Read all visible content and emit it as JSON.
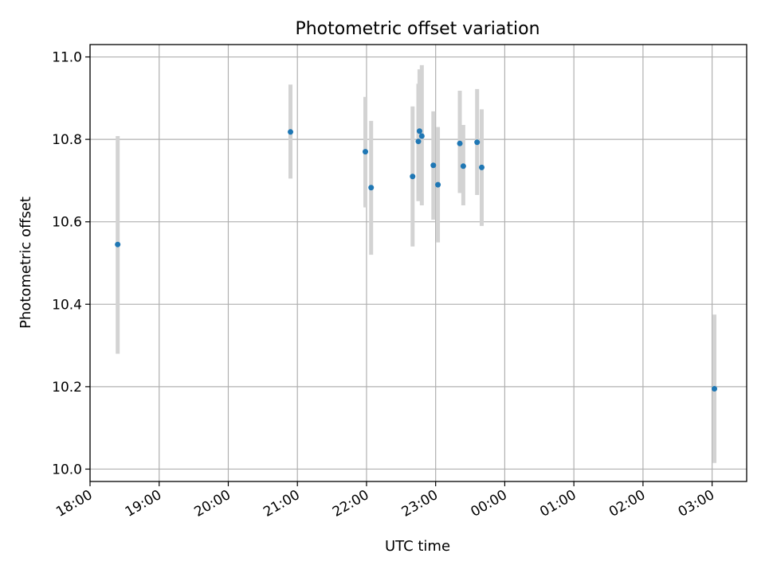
{
  "chart_data": {
    "type": "scatter",
    "title": "Photometric offset variation",
    "xlabel": "UTC time",
    "ylabel": "Photometric offset",
    "xlim": [
      "18:00",
      "03:30"
    ],
    "ylim": [
      9.97,
      11.03
    ],
    "grid": true,
    "x_ticks": [
      "18:00",
      "19:00",
      "20:00",
      "21:00",
      "22:00",
      "23:00",
      "00:00",
      "01:00",
      "02:00",
      "03:00"
    ],
    "y_ticks": [
      "10.0",
      "10.2",
      "10.4",
      "10.6",
      "10.8",
      "11.0"
    ],
    "colors": {
      "points": "#1f77b4",
      "errorbars": "#d3d3d3",
      "grid": "#b0b0b0"
    },
    "series": [
      {
        "x": [
          "18:24",
          "20:54",
          "21:59",
          "22:04",
          "22:40",
          "22:45",
          "22:46",
          "22:48",
          "22:58",
          "23:02",
          "23:21",
          "23:24",
          "23:36",
          "23:40",
          "03:02"
        ],
        "y": [
          10.545,
          10.818,
          10.77,
          10.683,
          10.71,
          10.795,
          10.82,
          10.808,
          10.737,
          10.69,
          10.79,
          10.735,
          10.793,
          10.732,
          10.195
        ],
        "yerr_low": [
          10.28,
          10.705,
          10.635,
          10.52,
          10.54,
          10.65,
          10.67,
          10.64,
          10.605,
          10.55,
          10.67,
          10.64,
          10.665,
          10.59,
          10.015
        ],
        "yerr_high": [
          10.808,
          10.933,
          10.903,
          10.845,
          10.88,
          10.935,
          10.97,
          10.98,
          10.868,
          10.83,
          10.918,
          10.835,
          10.922,
          10.873,
          10.375
        ]
      }
    ]
  }
}
